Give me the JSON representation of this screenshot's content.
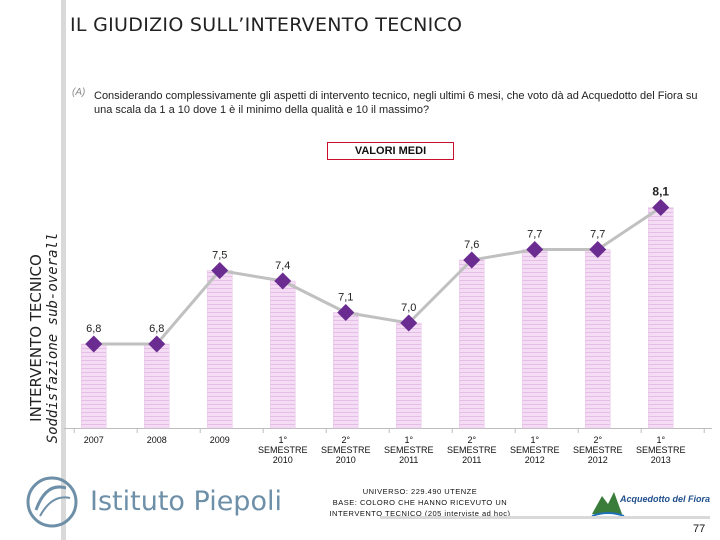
{
  "page": {
    "title": "IL GIUDIZIO SULL’INTERVENTO TECNICO",
    "question_mark": "(A)",
    "question": "Considerando complessivamente gli aspetti di intervento tecnico, negli ultimi 6 mesi, che voto dà ad Acquedotto del Fiora su una scala da 1 a 10 dove 1 è il minimo della qualità e 10 il massimo?",
    "badge": "VALORI MEDI",
    "side_title": "INTERVENTO TECNICO",
    "side_subtitle": "Soddisfazione sub-overall",
    "universe_lines": [
      "UNIVERSO: 229.490 UTENZE",
      "BASE: COLORO CHE HANNO RICEVUTO UN",
      "INTERVENTO TECNICO (205 interviste ad hoc)"
    ],
    "logo_text": "Istituto Piepoli",
    "partner_logo_text": "Acquedotto del Fiora",
    "page_number": "77"
  },
  "colors": {
    "bar_fill": "#f3d9f3",
    "bar_stripe": "#e3b6e3",
    "line": "#c0c0c0",
    "marker": "#6b2c91",
    "badge_border": "#c8102e"
  },
  "chart_data": {
    "type": "bar",
    "overlay": "line",
    "ylim": [
      6.0,
      8.4
    ],
    "categories": [
      [
        "2007"
      ],
      [
        "2008"
      ],
      [
        "2009"
      ],
      [
        "1°",
        "SEMESTRE",
        "2010"
      ],
      [
        "2°",
        "SEMESTRE",
        "2010"
      ],
      [
        "1°",
        "SEMESTRE",
        "2011"
      ],
      [
        "2°",
        "SEMESTRE",
        "2011"
      ],
      [
        "1°",
        "SEMESTRE",
        "2012"
      ],
      [
        "2°",
        "SEMESTRE",
        "2012"
      ],
      [
        "1°",
        "SEMESTRE",
        "2013"
      ]
    ],
    "values": [
      6.8,
      6.8,
      7.5,
      7.4,
      7.1,
      7.0,
      7.6,
      7.7,
      7.7,
      8.1
    ],
    "labels": [
      "6,8",
      "6,8",
      "7,5",
      "7,4",
      "7,1",
      "7,0",
      "7,6",
      "7,7",
      "7,7",
      "8,1"
    ],
    "highlight_last": true
  }
}
